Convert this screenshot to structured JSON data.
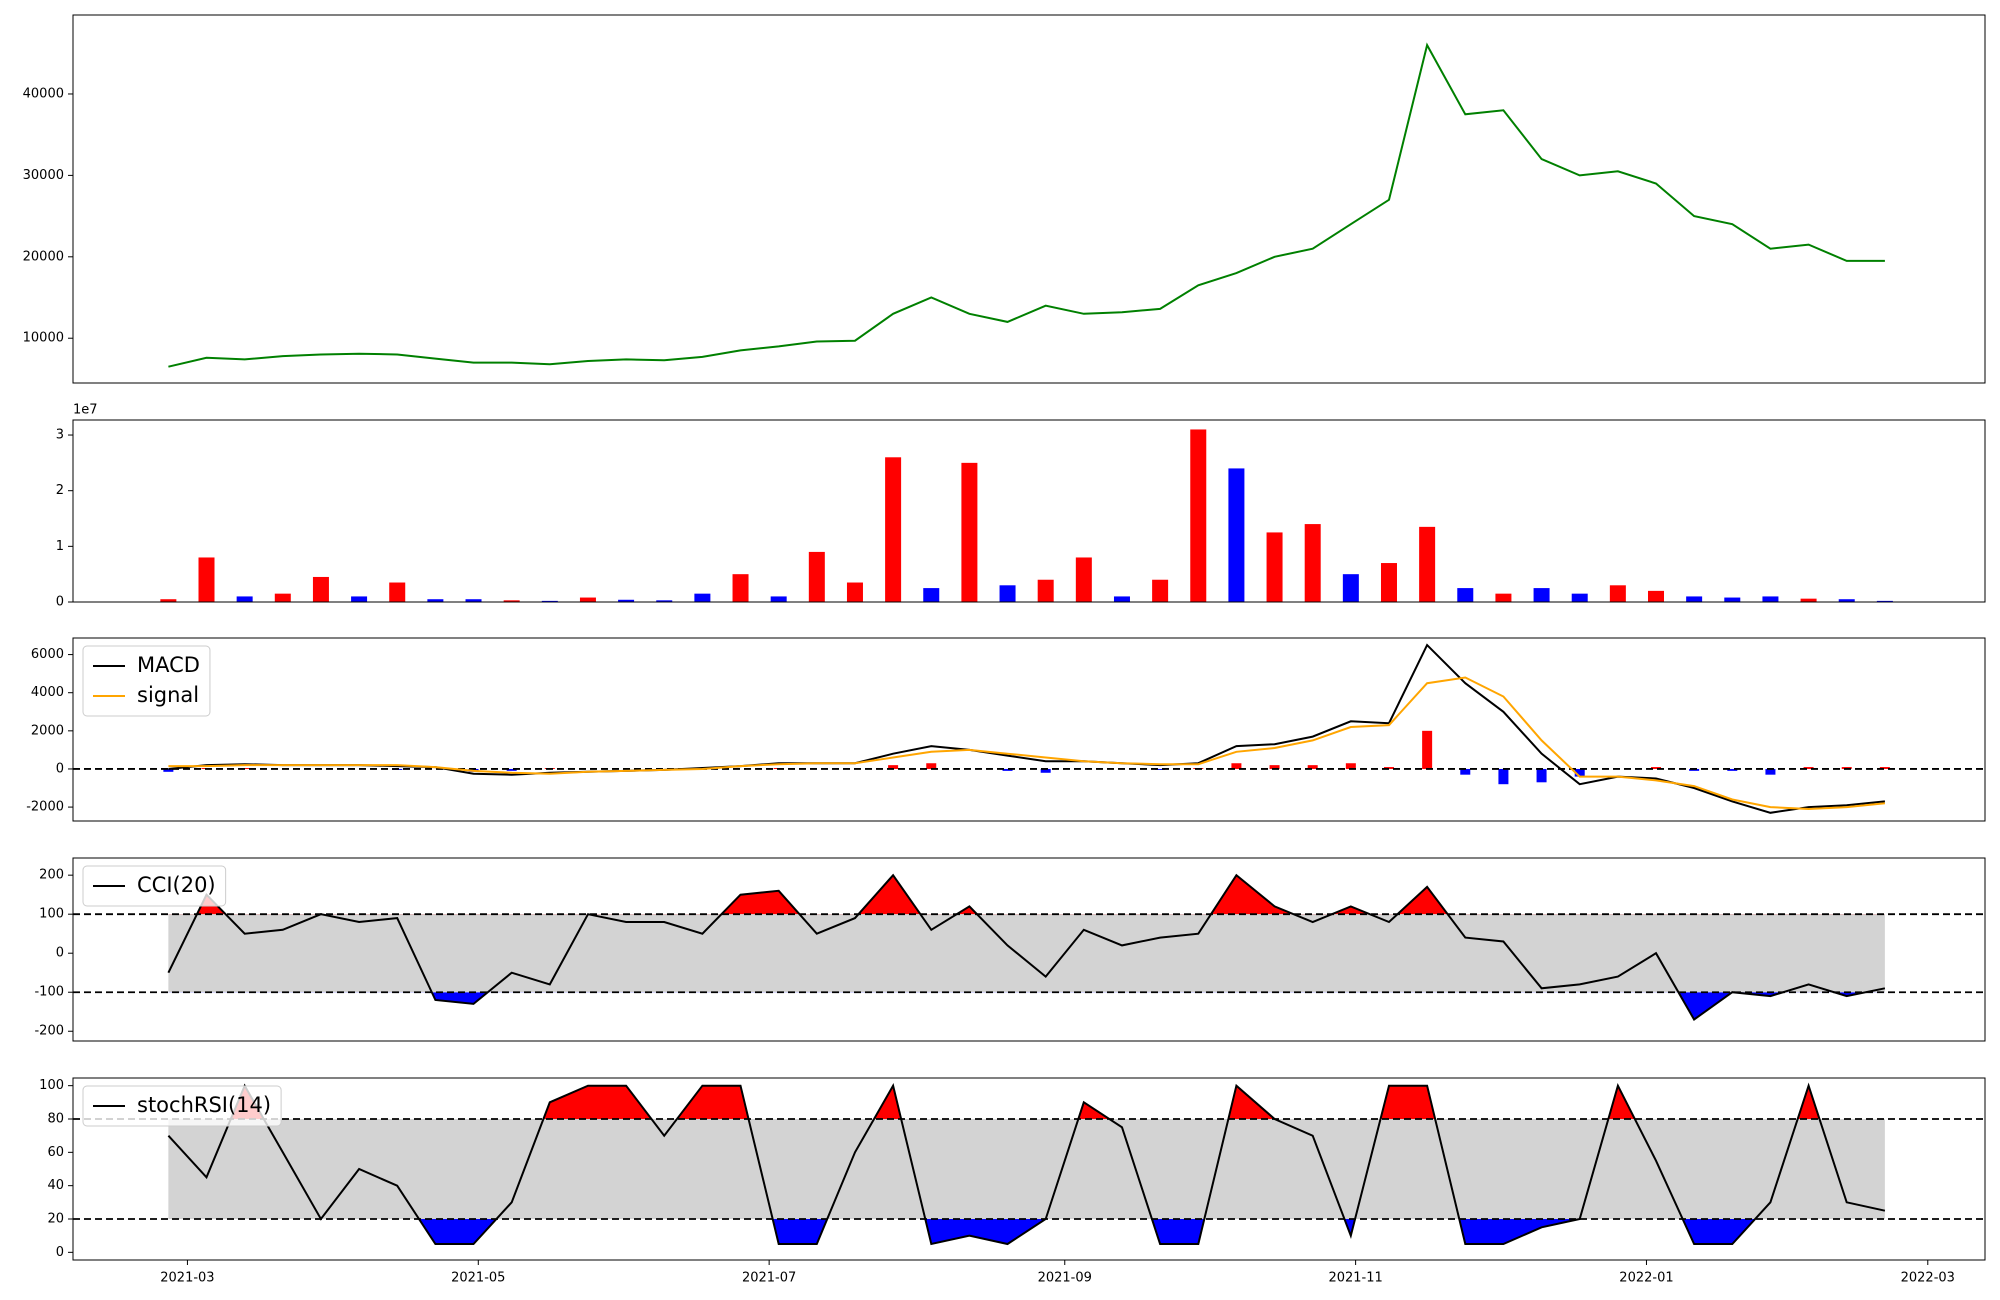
{
  "chart_data": [
    {
      "type": "line",
      "color": "#008000",
      "x": [
        -4,
        4,
        12,
        20,
        28,
        36,
        44,
        52,
        60,
        68,
        76,
        84,
        92,
        100,
        108,
        116,
        124,
        132,
        140,
        148,
        156,
        164,
        172,
        180,
        188,
        196,
        204,
        212,
        220,
        228,
        236,
        244,
        252,
        260,
        268,
        276,
        284,
        292,
        300,
        308,
        316,
        324,
        332,
        340,
        348,
        356
      ],
      "values": [
        6500,
        7600,
        7400,
        7800,
        8000,
        8100,
        8000,
        7500,
        7000,
        7000,
        6800,
        7200,
        7400,
        7300,
        7700,
        8500,
        9000,
        9600,
        9700,
        13000,
        15000,
        13000,
        12000,
        14000,
        13000,
        13200,
        13600,
        16500,
        18000,
        20000,
        21000,
        24000,
        27000,
        46000,
        37500,
        38000,
        32000,
        30000,
        30500,
        29000,
        25000,
        24000,
        21000,
        21500,
        19500,
        19500
      ],
      "xlim": [
        -24,
        377
      ],
      "ylim": [
        4500,
        49700
      ],
      "yticks": [
        10000,
        20000,
        30000,
        40000
      ]
    },
    {
      "type": "bar",
      "offset_label": "1e7",
      "x": [
        -4,
        4,
        12,
        20,
        28,
        36,
        44,
        52,
        60,
        68,
        76,
        84,
        92,
        100,
        108,
        116,
        124,
        132,
        140,
        148,
        156,
        164,
        172,
        180,
        188,
        196,
        204,
        212,
        220,
        228,
        236,
        244,
        252,
        260,
        268,
        276,
        284,
        292,
        300,
        308,
        316,
        324,
        332,
        340,
        348,
        356
      ],
      "values": [
        0.05,
        0.8,
        0.1,
        0.15,
        0.45,
        0.1,
        0.35,
        0.05,
        0.05,
        0.03,
        0.02,
        0.08,
        0.04,
        0.03,
        0.15,
        0.5,
        0.1,
        0.9,
        0.35,
        2.6,
        0.25,
        2.5,
        0.3,
        0.4,
        0.8,
        0.1,
        0.4,
        3.1,
        2.4,
        1.25,
        1.4,
        0.5,
        0.7,
        1.35,
        0.25,
        0.15,
        0.25,
        0.15,
        0.3,
        0.2,
        0.1,
        0.08,
        0.1,
        0.06,
        0.05,
        0.02
      ],
      "colors": [
        "#ff0000",
        "#ff0000",
        "#0000ff",
        "#ff0000",
        "#ff0000",
        "#0000ff",
        "#ff0000",
        "#0000ff",
        "#0000ff",
        "#ff0000",
        "#0000ff",
        "#ff0000",
        "#0000ff",
        "#0000ff",
        "#0000ff",
        "#ff0000",
        "#0000ff",
        "#ff0000",
        "#ff0000",
        "#ff0000",
        "#0000ff",
        "#ff0000",
        "#0000ff",
        "#ff0000",
        "#ff0000",
        "#0000ff",
        "#ff0000",
        "#ff0000",
        "#0000ff",
        "#ff0000",
        "#ff0000",
        "#0000ff",
        "#ff0000",
        "#ff0000",
        "#0000ff",
        "#ff0000",
        "#0000ff",
        "#0000ff",
        "#ff0000",
        "#ff0000",
        "#0000ff",
        "#0000ff",
        "#0000ff",
        "#ff0000",
        "#0000ff",
        "#0000ff"
      ],
      "xlim": [
        -24,
        377
      ],
      "ylim": [
        0,
        3.27
      ],
      "yticks": [
        0,
        1,
        2,
        3
      ]
    },
    {
      "type": "macd",
      "legend": "upper left",
      "x": [
        -4,
        4,
        12,
        20,
        28,
        36,
        44,
        52,
        60,
        68,
        76,
        84,
        92,
        100,
        108,
        116,
        124,
        132,
        140,
        148,
        156,
        164,
        172,
        180,
        188,
        196,
        204,
        212,
        220,
        228,
        236,
        244,
        252,
        260,
        268,
        276,
        284,
        292,
        300,
        308,
        316,
        324,
        332,
        340,
        348,
        356
      ],
      "series": [
        {
          "name": "MACD",
          "color": "#000000",
          "values": [
            0,
            200,
            250,
            200,
            200,
            200,
            150,
            100,
            -250,
            -300,
            -200,
            -150,
            -100,
            -50,
            50,
            150,
            300,
            300,
            300,
            800,
            1200,
            1000,
            700,
            400,
            400,
            300,
            200,
            300,
            1200,
            1300,
            1700,
            2500,
            2400,
            6500,
            4500,
            3000,
            800,
            -800,
            -400,
            -500,
            -1000,
            -1700,
            -2300,
            -2000,
            -1900,
            -1700
          ]
        },
        {
          "name": "signal",
          "color": "#ffa500",
          "values": [
            150,
            150,
            200,
            200,
            200,
            200,
            200,
            100,
            -100,
            -200,
            -250,
            -150,
            -100,
            -50,
            0,
            150,
            250,
            300,
            300,
            600,
            900,
            1000,
            800,
            600,
            400,
            300,
            250,
            250,
            900,
            1100,
            1500,
            2200,
            2300,
            4500,
            4800,
            3800,
            1500,
            -400,
            -400,
            -600,
            -900,
            -1600,
            -2000,
            -2100,
            -2000,
            -1800
          ]
        }
      ],
      "histogram": {
        "positive_color": "#ff0000",
        "negative_color": "#0000ff",
        "values": [
          -150,
          50,
          50,
          0,
          0,
          0,
          -50,
          0,
          -150,
          -100,
          50,
          0,
          0,
          0,
          50,
          0,
          50,
          0,
          0,
          200,
          300,
          0,
          -100,
          -200,
          0,
          0,
          -50,
          50,
          300,
          200,
          200,
          300,
          100,
          2000,
          -300,
          -800,
          -700,
          -400,
          0,
          100,
          -100,
          -100,
          -300,
          100,
          100,
          100
        ]
      },
      "levels": [
        0
      ],
      "xlim": [
        -24,
        377
      ],
      "ylim": [
        -2730,
        6870
      ],
      "yticks": [
        -2000,
        0,
        2000,
        4000,
        6000
      ]
    },
    {
      "type": "oscillator",
      "legend": "upper left",
      "x": [
        -4,
        4,
        12,
        20,
        28,
        36,
        44,
        52,
        60,
        68,
        76,
        84,
        92,
        100,
        108,
        116,
        124,
        132,
        140,
        148,
        156,
        164,
        172,
        180,
        188,
        196,
        204,
        212,
        220,
        228,
        236,
        244,
        252,
        260,
        268,
        276,
        284,
        292,
        300,
        308,
        316,
        324,
        332,
        340,
        348,
        356
      ],
      "series": [
        {
          "name": "CCI(20)",
          "color": "#000000",
          "values": [
            -50,
            150,
            50,
            60,
            100,
            80,
            90,
            -120,
            -130,
            -50,
            -80,
            100,
            80,
            80,
            50,
            150,
            160,
            50,
            90,
            200,
            60,
            120,
            20,
            -60,
            60,
            20,
            40,
            50,
            200,
            120,
            80,
            120,
            80,
            170,
            40,
            30,
            -90,
            -80,
            -60,
            0,
            -170,
            -100,
            -110,
            -80,
            -110,
            -90
          ]
        }
      ],
      "levels": [
        100,
        -100
      ],
      "fill_colors": {
        "above": "#ff0000",
        "below": "#0000ff",
        "band": "#d3d3d3"
      },
      "xlim": [
        -24,
        377
      ],
      "ylim": [
        -225,
        244
      ],
      "yticks": [
        -200,
        -100,
        0,
        100,
        200
      ]
    },
    {
      "type": "oscillator",
      "legend": "upper left",
      "x": [
        -4,
        4,
        12,
        20,
        28,
        36,
        44,
        52,
        60,
        68,
        76,
        84,
        92,
        100,
        108,
        116,
        124,
        132,
        140,
        148,
        156,
        164,
        172,
        180,
        188,
        196,
        204,
        212,
        220,
        228,
        236,
        244,
        252,
        260,
        268,
        276,
        284,
        292,
        300,
        308,
        316,
        324,
        332,
        340,
        348,
        356
      ],
      "series": [
        {
          "name": "stochRSI(14)",
          "color": "#000000",
          "values": [
            70,
            45,
            100,
            60,
            20,
            50,
            40,
            5,
            5,
            30,
            90,
            100,
            100,
            70,
            100,
            100,
            5,
            5,
            60,
            100,
            5,
            10,
            5,
            20,
            90,
            75,
            5,
            5,
            100,
            80,
            70,
            10,
            100,
            100,
            5,
            5,
            15,
            20,
            100,
            55,
            5,
            5,
            30,
            100,
            30,
            25
          ]
        }
      ],
      "levels": [
        80,
        20
      ],
      "fill_colors": {
        "above": "#ff0000",
        "below": "#0000ff",
        "band": "#d3d3d3"
      },
      "xlim": [
        -24,
        377
      ],
      "ylim": [
        -4.6,
        104.6
      ],
      "yticks": [
        0,
        20,
        40,
        60,
        80,
        100
      ],
      "xticks": [
        {
          "value": 0,
          "label": "2021-03"
        },
        {
          "value": 61,
          "label": "2021-05"
        },
        {
          "value": 122,
          "label": "2021-07"
        },
        {
          "value": 184,
          "label": "2021-09"
        },
        {
          "value": 245,
          "label": "2021-11"
        },
        {
          "value": 306,
          "label": "2022-01"
        },
        {
          "value": 365,
          "label": "2022-03"
        }
      ]
    }
  ]
}
